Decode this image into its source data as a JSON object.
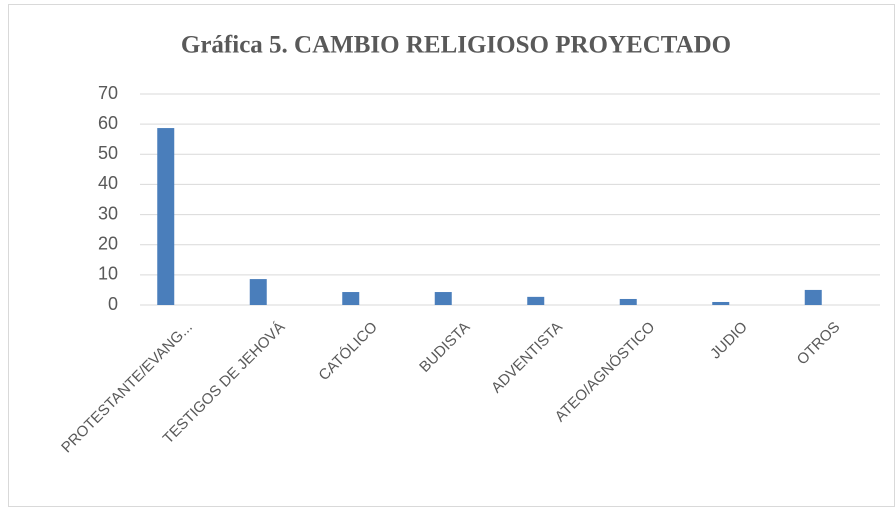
{
  "chart_data": {
    "type": "bar",
    "title": "Gráfica 5. CAMBIO RELIGIOSO PROYECTADO",
    "categories": [
      "PROTESTANTE/EVANG...",
      "TESTIGOS DE JEHOVÁ",
      "CATÓLICO",
      "BUDISTA",
      "ADVENTISTA",
      "ATEO/AGNÓSTICO",
      "JUDIO",
      "OTROS"
    ],
    "values": [
      58.7,
      8.6,
      4.3,
      4.3,
      2.7,
      2.0,
      1.0,
      5.0
    ],
    "color": "#4a7ebb",
    "ylim": [
      0,
      70
    ],
    "yticks": [
      0,
      10,
      20,
      30,
      40,
      50,
      60,
      70
    ],
    "grid": true
  }
}
